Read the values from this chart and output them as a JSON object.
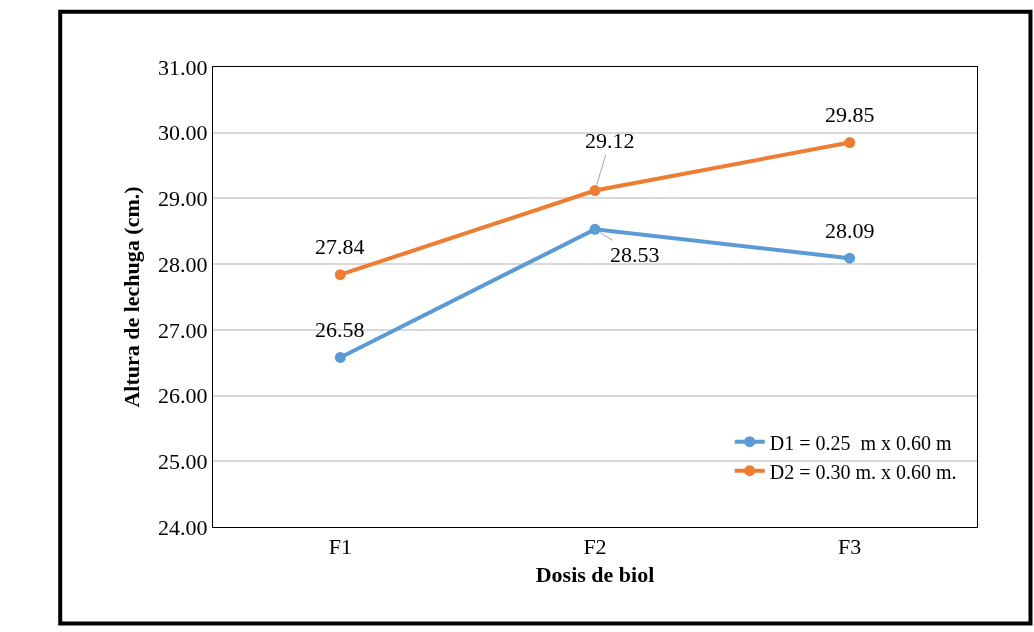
{
  "chart_data": {
    "type": "line",
    "xlabel": "Dosis de biol",
    "ylabel": "Altura de lechuga (cm.)",
    "categories": [
      "F1",
      "F2",
      "F3"
    ],
    "series": [
      {
        "name": "D1 = 0.25  m x 0.60 m",
        "color": "#5b9bd5",
        "values": [
          26.58,
          28.53,
          28.09
        ]
      },
      {
        "name": "D2 = 0.30 m. x 0.60 m.",
        "color": "#ed7d31",
        "values": [
          27.84,
          29.12,
          29.85
        ]
      }
    ],
    "ylim": [
      24,
      31
    ],
    "yticks": [
      {
        "value": 24,
        "label": "24.00"
      },
      {
        "value": 25,
        "label": "25.00"
      },
      {
        "value": 26,
        "label": "26.00"
      },
      {
        "value": 27,
        "label": "27.00"
      },
      {
        "value": 28,
        "label": "28.00"
      },
      {
        "value": 29,
        "label": "29.00"
      },
      {
        "value": 30,
        "label": "30.00"
      },
      {
        "value": 31,
        "label": "31.00"
      }
    ],
    "grid": "y",
    "legend": "bottom right",
    "marker": "circle",
    "line_style": "solid",
    "data_labels": true
  }
}
